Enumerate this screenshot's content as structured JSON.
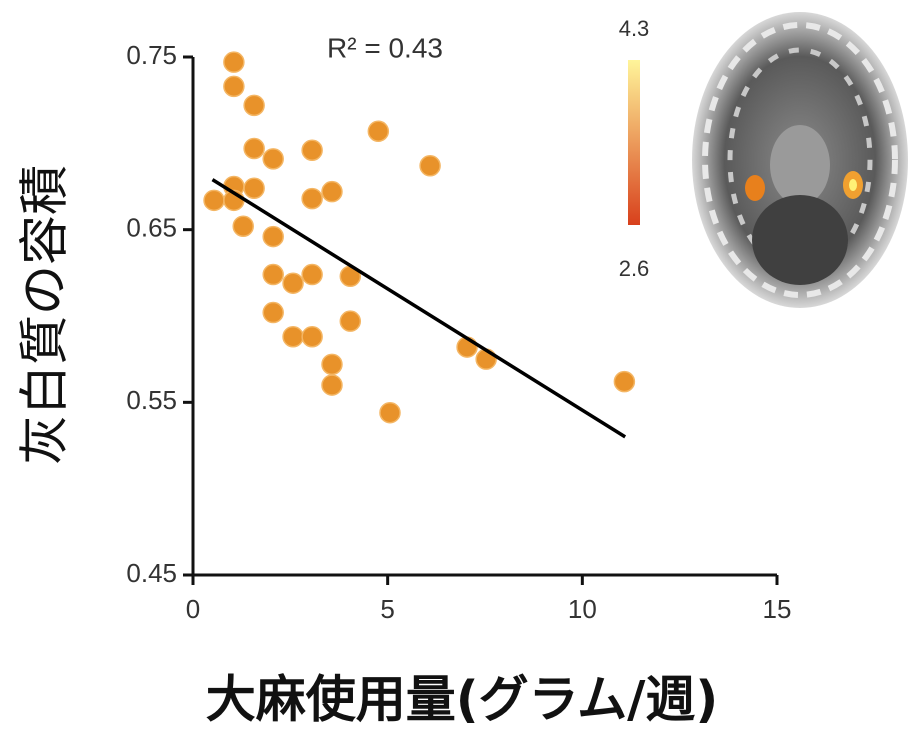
{
  "chart_data": {
    "type": "scatter",
    "x_label": "大麻使用量(グラム/週)",
    "y_label": "灰白質の容積",
    "annotation": "R² = 0.43",
    "x": [
      1.05,
      1.05,
      1.57,
      4.76,
      1.57,
      3.06,
      2.06,
      6.09,
      0.54,
      1.05,
      1.57,
      1.05,
      3.06,
      3.57,
      1.29,
      2.06,
      2.06,
      2.57,
      3.06,
      4.04,
      2.06,
      4.04,
      2.57,
      3.06,
      3.57,
      3.57,
      5.06,
      7.04,
      7.53,
      11.08
    ],
    "values": [
      0.747,
      0.733,
      0.722,
      0.707,
      0.697,
      0.696,
      0.691,
      0.687,
      0.667,
      0.675,
      0.674,
      0.667,
      0.668,
      0.672,
      0.652,
      0.646,
      0.624,
      0.619,
      0.624,
      0.623,
      0.602,
      0.597,
      0.588,
      0.588,
      0.572,
      0.56,
      0.544,
      0.582,
      0.575,
      0.562
    ],
    "color": "#e8922a",
    "trend": {
      "x": [
        0.5,
        11.1
      ],
      "values": [
        0.679,
        0.53
      ],
      "color": "#000000"
    },
    "xlim": [
      0,
      15
    ],
    "xticks": [
      0,
      5,
      10,
      15
    ],
    "ylim": [
      0.45,
      0.75
    ],
    "yticks": [
      0.45,
      0.55,
      0.65,
      0.75
    ],
    "colorbar": {
      "ticks": [
        2.6,
        4.3
      ],
      "colors": [
        "#d8401c",
        "#fff59a"
      ]
    }
  }
}
